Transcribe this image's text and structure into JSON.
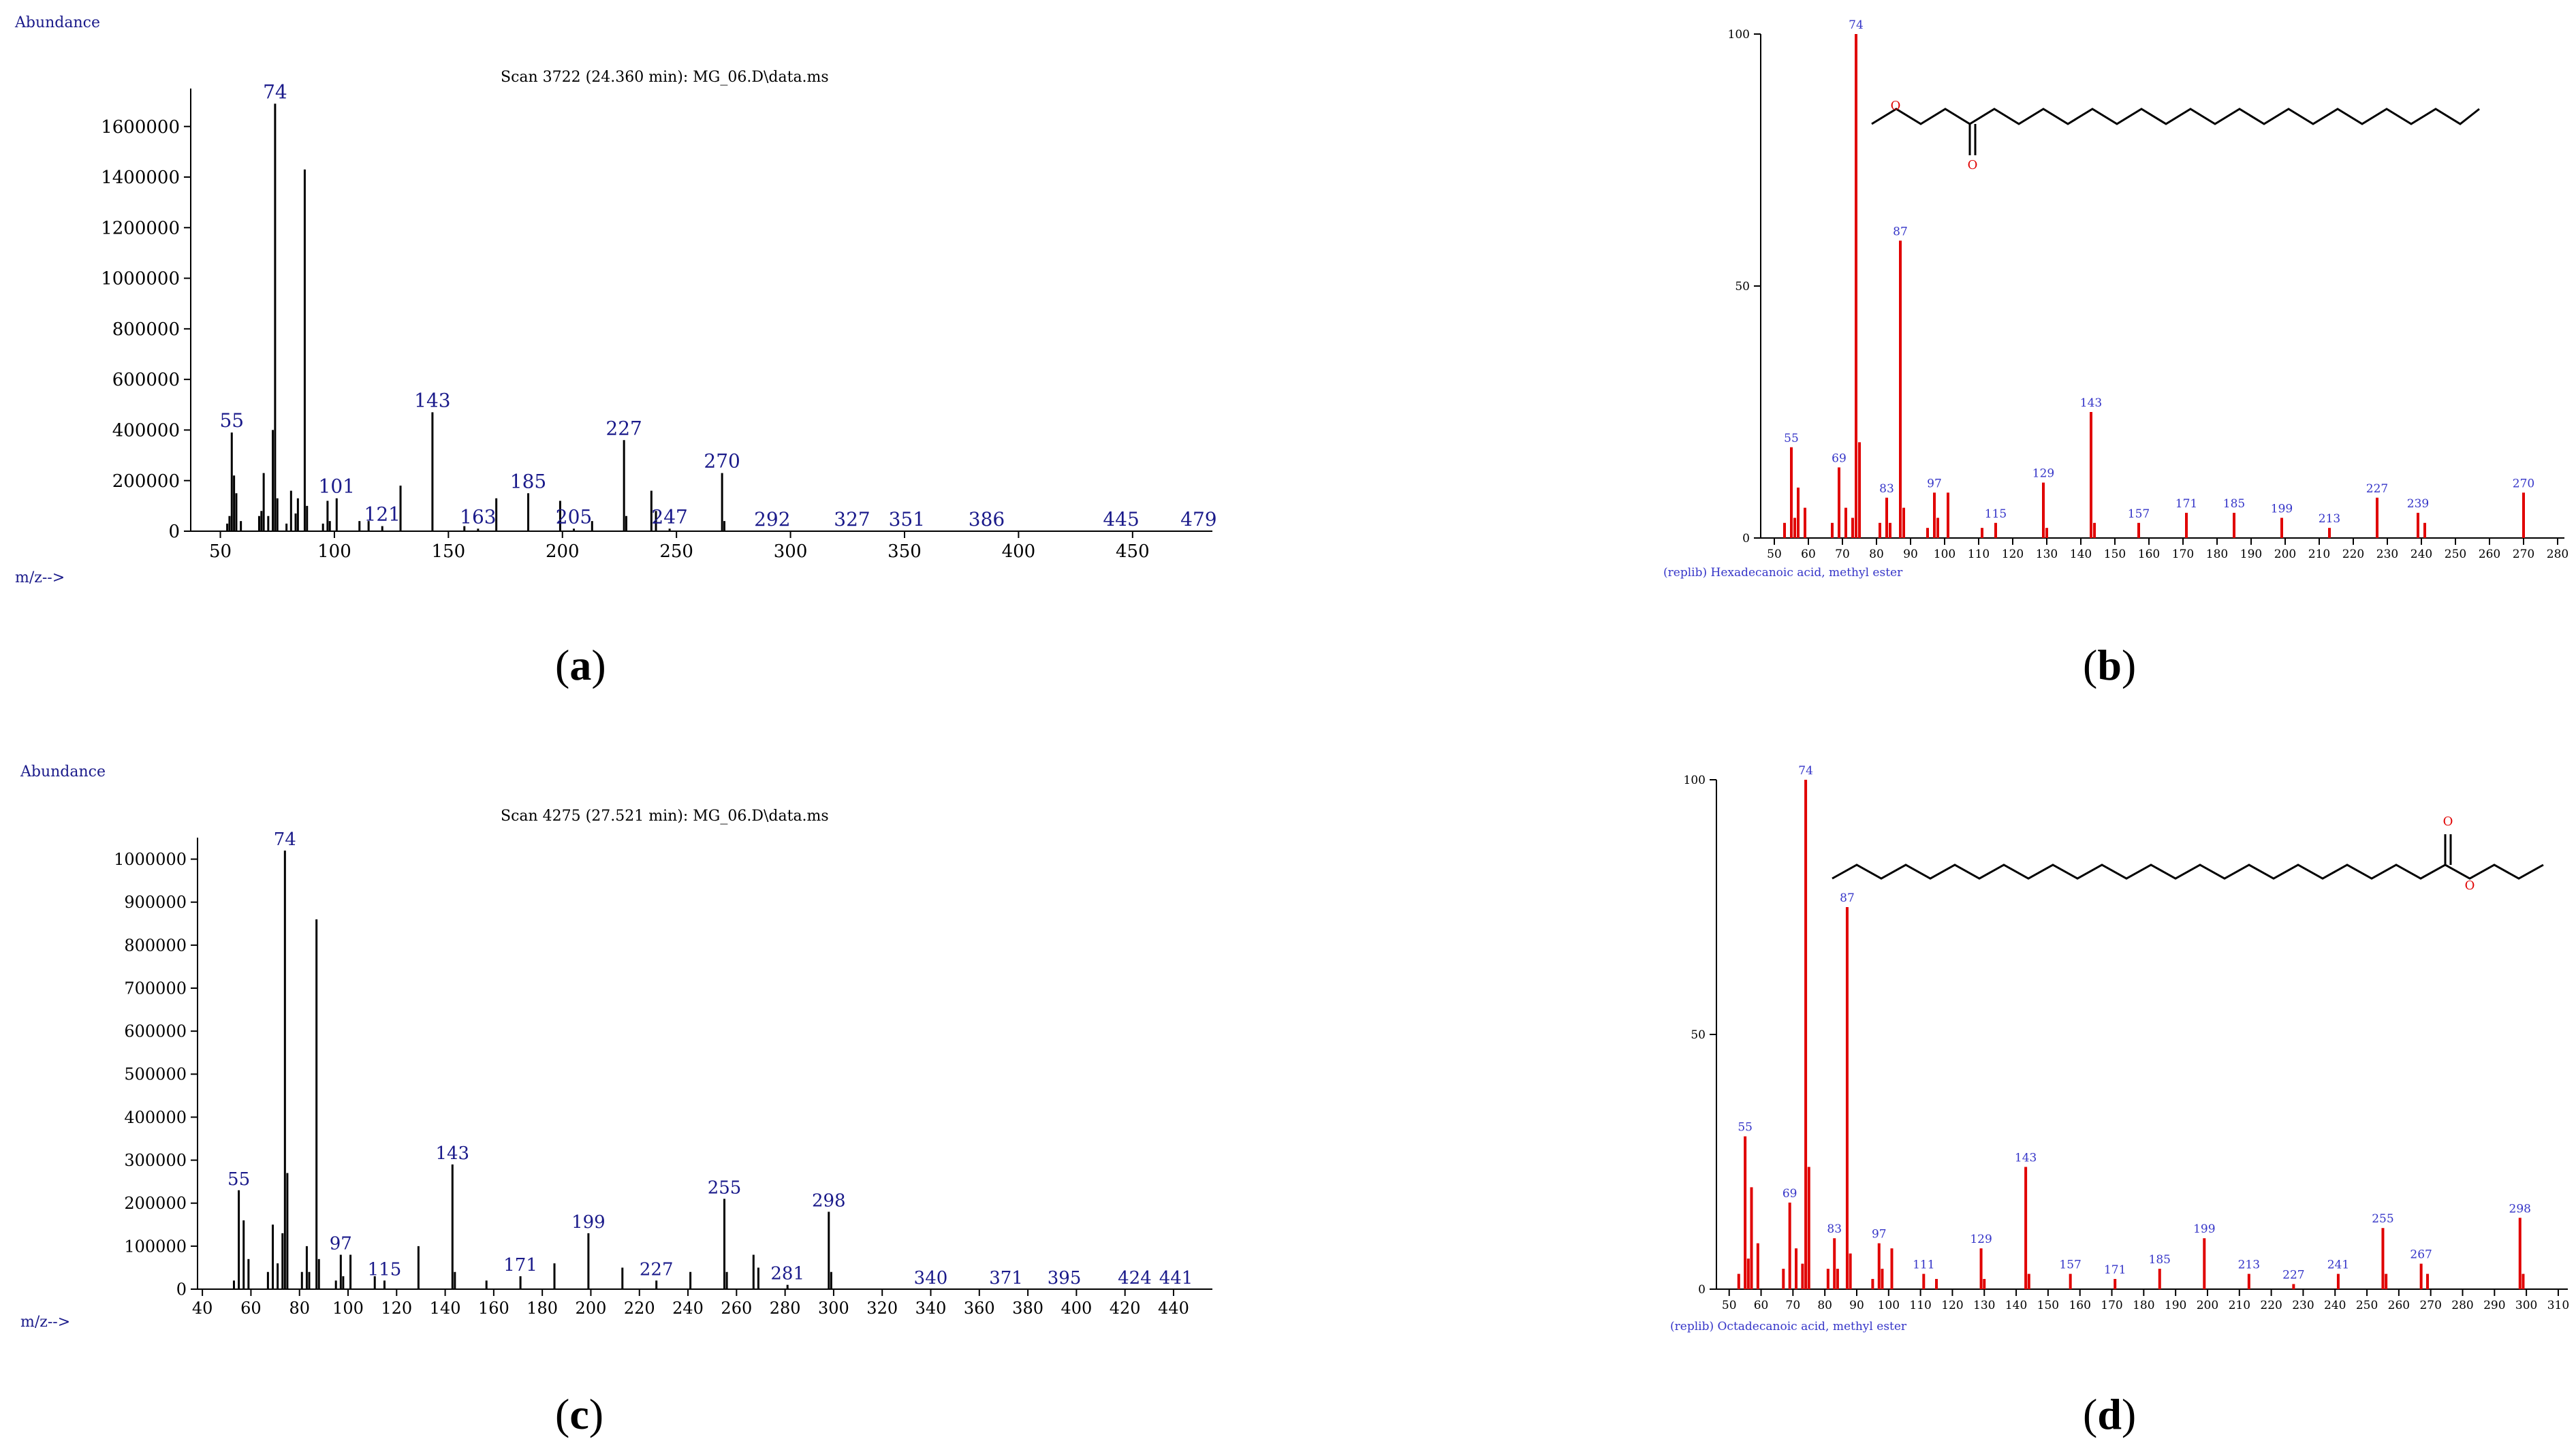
{
  "labels": {
    "abundance": "Abundance",
    "mz": "m/z-->"
  },
  "colors": {
    "exp_line": "#000000",
    "exp_text": "#1a1a8a",
    "lib_line": "#e00000",
    "lib_text": "#3535c8",
    "panel_text": "#000000"
  },
  "panels": {
    "a": {
      "tag": "a",
      "open": "(",
      "close": ")",
      "title": "Scan 3722 (24.360 min): MG_06.D\\data.ms",
      "peak_labels": [
        "55",
        "74",
        "101",
        "121",
        "143",
        "163",
        "185",
        "205",
        "227",
        "247",
        "270",
        "292",
        "327",
        "351",
        "386",
        "445",
        "479"
      ]
    },
    "b": {
      "tag": "b",
      "open": "(",
      "close": ")",
      "library_name": "(replib) Hexadecanoic acid, methyl ester",
      "peak_labels": [
        "55",
        "69",
        "74",
        "83",
        "87",
        "97",
        "115",
        "129",
        "143",
        "157",
        "171",
        "185",
        "199",
        "213",
        "227",
        "239",
        "270"
      ]
    },
    "c": {
      "tag": "c",
      "open": "(",
      "close": ")",
      "title": "Scan 4275 (27.521 min): MG_06.D\\data.ms",
      "peak_labels": [
        "55",
        "74",
        "97",
        "115",
        "143",
        "171",
        "199",
        "227",
        "255",
        "281",
        "298",
        "340",
        "371",
        "395",
        "424",
        "441"
      ]
    },
    "d": {
      "tag": "d",
      "open": "(",
      "close": ")",
      "library_name": "(replib) Octadecanoic acid, methyl ester",
      "peak_labels": [
        "55",
        "69",
        "74",
        "83",
        "87",
        "97",
        "111",
        "129",
        "143",
        "157",
        "171",
        "185",
        "199",
        "213",
        "227",
        "241",
        "255",
        "267",
        "298"
      ]
    }
  },
  "chart_data": [
    {
      "id": "a",
      "type": "bar",
      "title": "Scan 3722 (24.360 min): MG_06.D\\data.ms",
      "xlabel": "m/z-->",
      "ylabel": "Abundance",
      "xlim": [
        37,
        485
      ],
      "ylim": [
        0,
        1750000
      ],
      "x_ticks": [
        50,
        100,
        150,
        200,
        250,
        300,
        350,
        400,
        450
      ],
      "y_ticks": [
        0,
        200000,
        400000,
        600000,
        800000,
        1000000,
        1200000,
        1400000,
        1600000
      ],
      "peaks": [
        {
          "mz": 53,
          "abundance": 30000
        },
        {
          "mz": 54,
          "abundance": 60000
        },
        {
          "mz": 55,
          "abundance": 390000
        },
        {
          "mz": 56,
          "abundance": 220000
        },
        {
          "mz": 57,
          "abundance": 150000
        },
        {
          "mz": 59,
          "abundance": 40000
        },
        {
          "mz": 67,
          "abundance": 60000
        },
        {
          "mz": 68,
          "abundance": 80000
        },
        {
          "mz": 69,
          "abundance": 230000
        },
        {
          "mz": 71,
          "abundance": 60000
        },
        {
          "mz": 73,
          "abundance": 400000
        },
        {
          "mz": 74,
          "abundance": 1690000
        },
        {
          "mz": 75,
          "abundance": 130000
        },
        {
          "mz": 79,
          "abundance": 30000
        },
        {
          "mz": 81,
          "abundance": 160000
        },
        {
          "mz": 83,
          "abundance": 70000
        },
        {
          "mz": 84,
          "abundance": 130000
        },
        {
          "mz": 87,
          "abundance": 1430000
        },
        {
          "mz": 88,
          "abundance": 100000
        },
        {
          "mz": 95,
          "abundance": 30000
        },
        {
          "mz": 97,
          "abundance": 120000
        },
        {
          "mz": 98,
          "abundance": 40000
        },
        {
          "mz": 101,
          "abundance": 130000
        },
        {
          "mz": 111,
          "abundance": 40000
        },
        {
          "mz": 115,
          "abundance": 40000
        },
        {
          "mz": 121,
          "abundance": 20000
        },
        {
          "mz": 129,
          "abundance": 180000
        },
        {
          "mz": 143,
          "abundance": 470000
        },
        {
          "mz": 157,
          "abundance": 20000
        },
        {
          "mz": 163,
          "abundance": 10000
        },
        {
          "mz": 171,
          "abundance": 130000
        },
        {
          "mz": 185,
          "abundance": 150000
        },
        {
          "mz": 199,
          "abundance": 120000
        },
        {
          "mz": 205,
          "abundance": 10000
        },
        {
          "mz": 213,
          "abundance": 40000
        },
        {
          "mz": 227,
          "abundance": 360000
        },
        {
          "mz": 228,
          "abundance": 60000
        },
        {
          "mz": 239,
          "abundance": 160000
        },
        {
          "mz": 241,
          "abundance": 80000
        },
        {
          "mz": 247,
          "abundance": 10000
        },
        {
          "mz": 270,
          "abundance": 230000
        },
        {
          "mz": 271,
          "abundance": 40000
        }
      ]
    },
    {
      "id": "b",
      "type": "bar",
      "title": "(replib) Hexadecanoic acid, methyl ester",
      "xlabel": "",
      "ylabel": "",
      "xlim": [
        46,
        282
      ],
      "ylim": [
        0,
        100
      ],
      "x_ticks": [
        50,
        60,
        70,
        80,
        90,
        100,
        110,
        120,
        130,
        140,
        150,
        160,
        170,
        180,
        190,
        200,
        210,
        220,
        230,
        240,
        250,
        260,
        270,
        280
      ],
      "y_ticks": [
        0,
        50,
        100
      ],
      "peaks": [
        {
          "mz": 53,
          "abundance": 3
        },
        {
          "mz": 55,
          "abundance": 18
        },
        {
          "mz": 56,
          "abundance": 4
        },
        {
          "mz": 57,
          "abundance": 10
        },
        {
          "mz": 59,
          "abundance": 6
        },
        {
          "mz": 67,
          "abundance": 3
        },
        {
          "mz": 69,
          "abundance": 14
        },
        {
          "mz": 71,
          "abundance": 6
        },
        {
          "mz": 73,
          "abundance": 4
        },
        {
          "mz": 74,
          "abundance": 100
        },
        {
          "mz": 75,
          "abundance": 19
        },
        {
          "mz": 81,
          "abundance": 3
        },
        {
          "mz": 83,
          "abundance": 8
        },
        {
          "mz": 84,
          "abundance": 3
        },
        {
          "mz": 87,
          "abundance": 59
        },
        {
          "mz": 88,
          "abundance": 6
        },
        {
          "mz": 95,
          "abundance": 2
        },
        {
          "mz": 97,
          "abundance": 9
        },
        {
          "mz": 98,
          "abundance": 4
        },
        {
          "mz": 101,
          "abundance": 9
        },
        {
          "mz": 111,
          "abundance": 2
        },
        {
          "mz": 115,
          "abundance": 3
        },
        {
          "mz": 129,
          "abundance": 11
        },
        {
          "mz": 130,
          "abundance": 2
        },
        {
          "mz": 143,
          "abundance": 25
        },
        {
          "mz": 144,
          "abundance": 3
        },
        {
          "mz": 157,
          "abundance": 3
        },
        {
          "mz": 171,
          "abundance": 5
        },
        {
          "mz": 185,
          "abundance": 5
        },
        {
          "mz": 199,
          "abundance": 4
        },
        {
          "mz": 213,
          "abundance": 2
        },
        {
          "mz": 227,
          "abundance": 8
        },
        {
          "mz": 239,
          "abundance": 5
        },
        {
          "mz": 241,
          "abundance": 3
        },
        {
          "mz": 270,
          "abundance": 9
        }
      ]
    },
    {
      "id": "c",
      "type": "bar",
      "title": "Scan 4275 (27.521 min): MG_06.D\\data.ms",
      "xlabel": "m/z-->",
      "ylabel": "Abundance",
      "xlim": [
        38,
        456
      ],
      "ylim": [
        0,
        1050000
      ],
      "x_ticks": [
        40,
        60,
        80,
        100,
        120,
        140,
        160,
        180,
        200,
        220,
        240,
        260,
        280,
        300,
        320,
        340,
        360,
        380,
        400,
        420,
        440
      ],
      "y_ticks": [
        0,
        100000,
        200000,
        300000,
        400000,
        500000,
        600000,
        700000,
        800000,
        900000,
        1000000
      ],
      "peaks": [
        {
          "mz": 53,
          "abundance": 20000
        },
        {
          "mz": 55,
          "abundance": 230000
        },
        {
          "mz": 57,
          "abundance": 160000
        },
        {
          "mz": 59,
          "abundance": 70000
        },
        {
          "mz": 67,
          "abundance": 40000
        },
        {
          "mz": 69,
          "abundance": 150000
        },
        {
          "mz": 71,
          "abundance": 60000
        },
        {
          "mz": 73,
          "abundance": 130000
        },
        {
          "mz": 74,
          "abundance": 1020000
        },
        {
          "mz": 75,
          "abundance": 270000
        },
        {
          "mz": 81,
          "abundance": 40000
        },
        {
          "mz": 83,
          "abundance": 100000
        },
        {
          "mz": 84,
          "abundance": 40000
        },
        {
          "mz": 87,
          "abundance": 860000
        },
        {
          "mz": 88,
          "abundance": 70000
        },
        {
          "mz": 95,
          "abundance": 20000
        },
        {
          "mz": 97,
          "abundance": 80000
        },
        {
          "mz": 98,
          "abundance": 30000
        },
        {
          "mz": 101,
          "abundance": 80000
        },
        {
          "mz": 111,
          "abundance": 30000
        },
        {
          "mz": 115,
          "abundance": 20000
        },
        {
          "mz": 129,
          "abundance": 100000
        },
        {
          "mz": 143,
          "abundance": 290000
        },
        {
          "mz": 144,
          "abundance": 40000
        },
        {
          "mz": 157,
          "abundance": 20000
        },
        {
          "mz": 171,
          "abundance": 30000
        },
        {
          "mz": 185,
          "abundance": 60000
        },
        {
          "mz": 199,
          "abundance": 130000
        },
        {
          "mz": 213,
          "abundance": 50000
        },
        {
          "mz": 227,
          "abundance": 20000
        },
        {
          "mz": 241,
          "abundance": 40000
        },
        {
          "mz": 255,
          "abundance": 210000
        },
        {
          "mz": 256,
          "abundance": 40000
        },
        {
          "mz": 267,
          "abundance": 80000
        },
        {
          "mz": 269,
          "abundance": 50000
        },
        {
          "mz": 281,
          "abundance": 10000
        },
        {
          "mz": 298,
          "abundance": 180000
        },
        {
          "mz": 299,
          "abundance": 40000
        }
      ]
    },
    {
      "id": "d",
      "type": "bar",
      "title": "(replib) Octadecanoic acid, methyl ester",
      "xlabel": "",
      "ylabel": "",
      "xlim": [
        46,
        313
      ],
      "ylim": [
        0,
        100
      ],
      "x_ticks": [
        50,
        60,
        70,
        80,
        90,
        100,
        110,
        120,
        130,
        140,
        150,
        160,
        170,
        180,
        190,
        200,
        210,
        220,
        230,
        240,
        250,
        260,
        270,
        280,
        290,
        300,
        310
      ],
      "y_ticks": [
        0,
        50,
        100
      ],
      "peaks": [
        {
          "mz": 53,
          "abundance": 3
        },
        {
          "mz": 55,
          "abundance": 30
        },
        {
          "mz": 56,
          "abundance": 6
        },
        {
          "mz": 57,
          "abundance": 20
        },
        {
          "mz": 59,
          "abundance": 9
        },
        {
          "mz": 67,
          "abundance": 4
        },
        {
          "mz": 69,
          "abundance": 17
        },
        {
          "mz": 71,
          "abundance": 8
        },
        {
          "mz": 73,
          "abundance": 5
        },
        {
          "mz": 74,
          "abundance": 100
        },
        {
          "mz": 75,
          "abundance": 24
        },
        {
          "mz": 81,
          "abundance": 4
        },
        {
          "mz": 83,
          "abundance": 10
        },
        {
          "mz": 84,
          "abundance": 4
        },
        {
          "mz": 87,
          "abundance": 75
        },
        {
          "mz": 88,
          "abundance": 7
        },
        {
          "mz": 95,
          "abundance": 2
        },
        {
          "mz": 97,
          "abundance": 9
        },
        {
          "mz": 98,
          "abundance": 4
        },
        {
          "mz": 101,
          "abundance": 8
        },
        {
          "mz": 111,
          "abundance": 3
        },
        {
          "mz": 115,
          "abundance": 2
        },
        {
          "mz": 129,
          "abundance": 8
        },
        {
          "mz": 130,
          "abundance": 2
        },
        {
          "mz": 143,
          "abundance": 24
        },
        {
          "mz": 144,
          "abundance": 3
        },
        {
          "mz": 157,
          "abundance": 3
        },
        {
          "mz": 171,
          "abundance": 2
        },
        {
          "mz": 185,
          "abundance": 4
        },
        {
          "mz": 199,
          "abundance": 10
        },
        {
          "mz": 213,
          "abundance": 3
        },
        {
          "mz": 227,
          "abundance": 1
        },
        {
          "mz": 241,
          "abundance": 3
        },
        {
          "mz": 255,
          "abundance": 12
        },
        {
          "mz": 256,
          "abundance": 3
        },
        {
          "mz": 267,
          "abundance": 5
        },
        {
          "mz": 269,
          "abundance": 3
        },
        {
          "mz": 298,
          "abundance": 14
        },
        {
          "mz": 299,
          "abundance": 3
        }
      ]
    }
  ]
}
